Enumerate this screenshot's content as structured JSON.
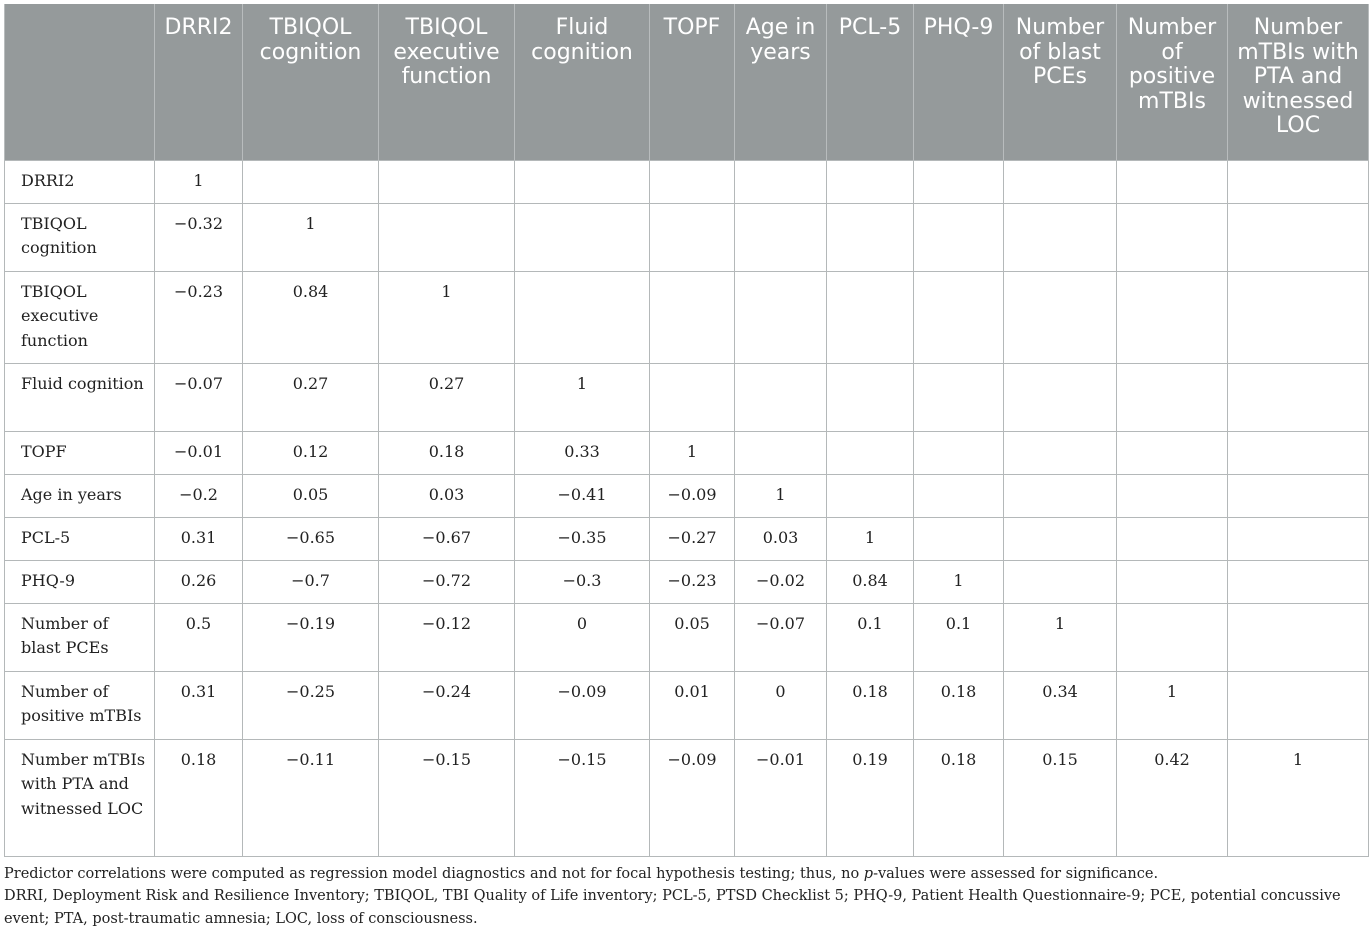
{
  "table": {
    "columns": [
      "",
      "DRRI2",
      "TBIQOL cognition",
      "TBIQOL executive function",
      "Fluid cognition",
      "TOPF",
      "Age in years",
      "PCL-5",
      "PHQ-9",
      "Number of blast PCEs",
      "Number of positive mTBIs",
      "Number mTBIs with PTA and witnessed LOC"
    ],
    "rows": [
      {
        "label": "DRRI2",
        "values": [
          "1",
          "",
          "",
          "",
          "",
          "",
          "",
          "",
          "",
          "",
          ""
        ]
      },
      {
        "label": "TBIQOL cognition",
        "values": [
          "−0.32",
          "1",
          "",
          "",
          "",
          "",
          "",
          "",
          "",
          "",
          ""
        ]
      },
      {
        "label": "TBIQOL executive function",
        "values": [
          "−0.23",
          "0.84",
          "1",
          "",
          "",
          "",
          "",
          "",
          "",
          "",
          ""
        ]
      },
      {
        "label": "Fluid cognition",
        "values": [
          "−0.07",
          "0.27",
          "0.27",
          "1",
          "",
          "",
          "",
          "",
          "",
          "",
          ""
        ]
      },
      {
        "label": "TOPF",
        "values": [
          "−0.01",
          "0.12",
          "0.18",
          "0.33",
          "1",
          "",
          "",
          "",
          "",
          "",
          ""
        ]
      },
      {
        "label": "Age in years",
        "values": [
          "−0.2",
          "0.05",
          "0.03",
          "−0.41",
          "−0.09",
          "1",
          "",
          "",
          "",
          "",
          ""
        ]
      },
      {
        "label": "PCL-5",
        "values": [
          "0.31",
          "−0.65",
          "−0.67",
          "−0.35",
          "−0.27",
          "0.03",
          "1",
          "",
          "",
          "",
          ""
        ]
      },
      {
        "label": "PHQ-9",
        "values": [
          "0.26",
          "−0.7",
          "−0.72",
          "−0.3",
          "−0.23",
          "−0.02",
          "0.84",
          "1",
          "",
          "",
          ""
        ]
      },
      {
        "label": "Number of blast PCEs",
        "values": [
          "0.5",
          "−0.19",
          "−0.12",
          "0",
          "0.05",
          "−0.07",
          "0.1",
          "0.1",
          "1",
          "",
          ""
        ]
      },
      {
        "label": "Number of positive mTBIs",
        "values": [
          "0.31",
          "−0.25",
          "−0.24",
          "−0.09",
          "0.01",
          "0",
          "0.18",
          "0.18",
          "0.34",
          "1",
          ""
        ]
      },
      {
        "label": "Number mTBIs with PTA and witnessed LOC",
        "values": [
          "0.18",
          "−0.11",
          "−0.15",
          "−0.15",
          "−0.09",
          "−0.01",
          "0.19",
          "0.18",
          "0.15",
          "0.42",
          "1"
        ]
      }
    ]
  },
  "notes": {
    "note1_a": "Predictor correlations were computed as regression model diagnostics and not for focal hypothesis testing; thus, no ",
    "note1_italic": "p",
    "note1_b": "-values were assessed for significance.",
    "note2": "DRRI, Deployment Risk and Resilience Inventory; TBIQOL, TBI Quality of Life inventory; PCL-5, PTSD Checklist 5; PHQ-9, Patient Health Questionnaire-9; PCE, potential concussive event; PTA, post-traumatic amnesia; LOC, loss of consciousness."
  }
}
